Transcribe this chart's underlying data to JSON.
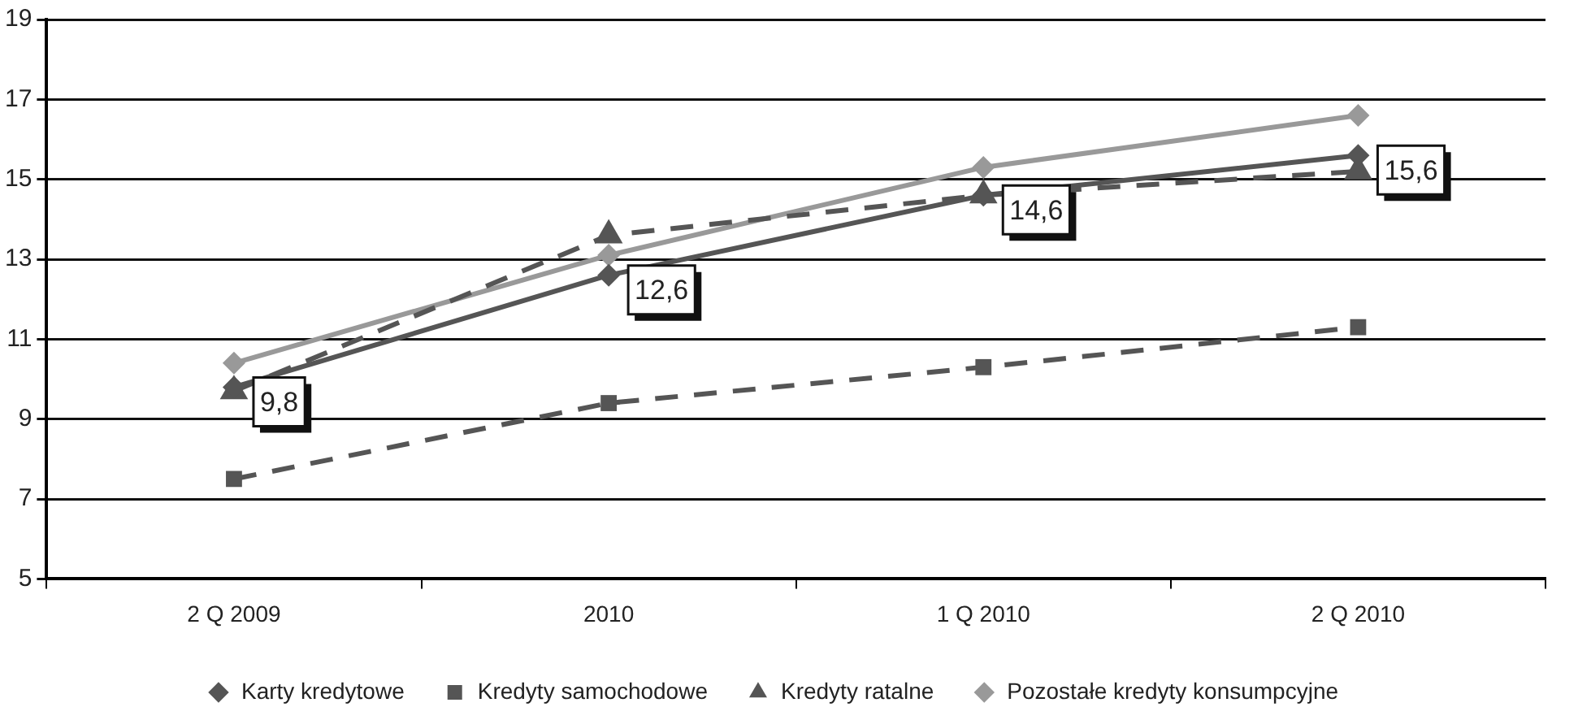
{
  "chart_data": {
    "type": "line",
    "categories": [
      "2 Q 2009",
      "2010",
      "1 Q 2010",
      "2 Q 2010"
    ],
    "series": [
      {
        "name": "Karty kredytowe",
        "color": "#555555",
        "marker": "diamond",
        "line_style": "solid",
        "values": [
          9.8,
          12.6,
          14.6,
          15.6
        ],
        "value_labels": [
          "9,8",
          "12,6",
          "14,6",
          "15,6"
        ]
      },
      {
        "name": "Kredyty samochodowe",
        "color": "#555555",
        "marker": "square",
        "line_style": "dashed",
        "values": [
          7.5,
          9.4,
          10.3,
          11.3
        ]
      },
      {
        "name": "Kredyty ratalne",
        "color": "#555555",
        "marker": "triangle",
        "line_style": "dashed",
        "values": [
          9.7,
          13.6,
          14.6,
          15.2
        ]
      },
      {
        "name": "Pozostałe kredyty konsumpcyjne",
        "color": "#999999",
        "marker": "diamond",
        "line_style": "solid",
        "values": [
          10.4,
          13.1,
          15.3,
          16.6
        ]
      }
    ],
    "ylim": [
      5,
      19
    ],
    "yticks": [
      5,
      7,
      9,
      11,
      13,
      15,
      17,
      19
    ],
    "grid": "y",
    "legend": "bottom"
  }
}
